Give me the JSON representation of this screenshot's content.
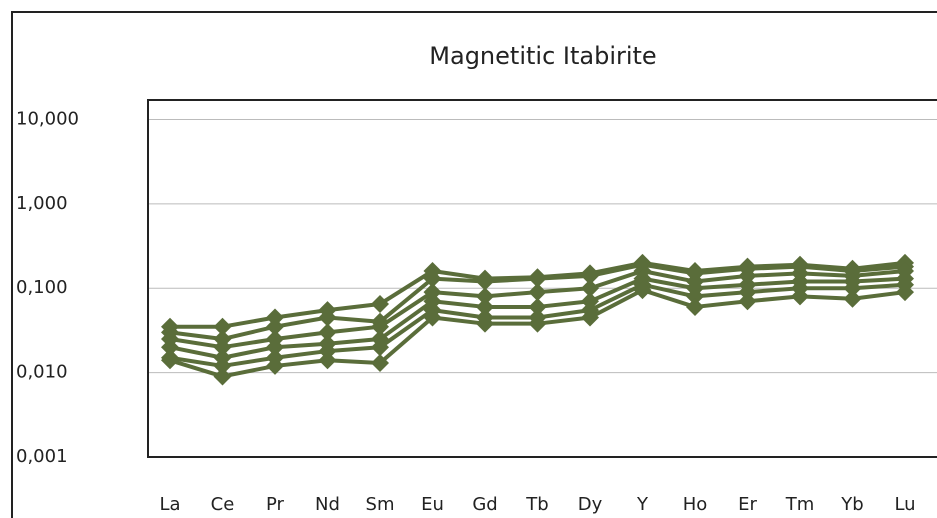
{
  "chart_data": {
    "type": "line",
    "title": "Magnetitic Itabirite",
    "categories": [
      "La",
      "Ce",
      "Pr",
      "Nd",
      "Sm",
      "Eu",
      "Gd",
      "Tb",
      "Dy",
      "Y",
      "Ho",
      "Er",
      "Tm",
      "Yb",
      "Lu"
    ],
    "log_scale": true,
    "grid": true,
    "ylim": [
      0.001,
      17
    ],
    "yticks": [
      {
        "value": 0.001,
        "label": "0,001"
      },
      {
        "value": 0.01,
        "label": "0,010"
      },
      {
        "value": 0.1,
        "label": "0,100"
      },
      {
        "value": 1,
        "label": "1,000"
      },
      {
        "value": 10,
        "label": "10,000"
      }
    ],
    "series": [
      {
        "color": "#5a6d3a",
        "values": [
          0.035,
          0.035,
          0.045,
          0.055,
          0.065,
          0.16,
          0.13,
          0.135,
          0.15,
          0.2,
          0.16,
          0.18,
          0.19,
          0.17,
          0.2
        ]
      },
      {
        "color": "#5a6d3a",
        "values": [
          0.03,
          0.025,
          0.035,
          0.045,
          0.04,
          0.13,
          0.12,
          0.13,
          0.14,
          0.19,
          0.15,
          0.17,
          0.18,
          0.16,
          0.18
        ]
      },
      {
        "color": "#5a6d3a",
        "values": [
          0.025,
          0.02,
          0.025,
          0.03,
          0.035,
          0.09,
          0.08,
          0.09,
          0.1,
          0.16,
          0.12,
          0.14,
          0.15,
          0.14,
          0.16
        ]
      },
      {
        "color": "#5a6d3a",
        "values": [
          0.02,
          0.015,
          0.02,
          0.022,
          0.025,
          0.07,
          0.06,
          0.06,
          0.07,
          0.13,
          0.1,
          0.11,
          0.12,
          0.12,
          0.13
        ]
      },
      {
        "color": "#5a6d3a",
        "values": [
          0.015,
          0.012,
          0.015,
          0.018,
          0.02,
          0.055,
          0.045,
          0.045,
          0.055,
          0.11,
          0.08,
          0.09,
          0.1,
          0.1,
          0.11
        ]
      },
      {
        "color": "#5a6d3a",
        "values": [
          0.014,
          0.009,
          0.012,
          0.014,
          0.013,
          0.045,
          0.038,
          0.038,
          0.045,
          0.095,
          0.06,
          0.07,
          0.08,
          0.075,
          0.09
        ]
      }
    ]
  }
}
